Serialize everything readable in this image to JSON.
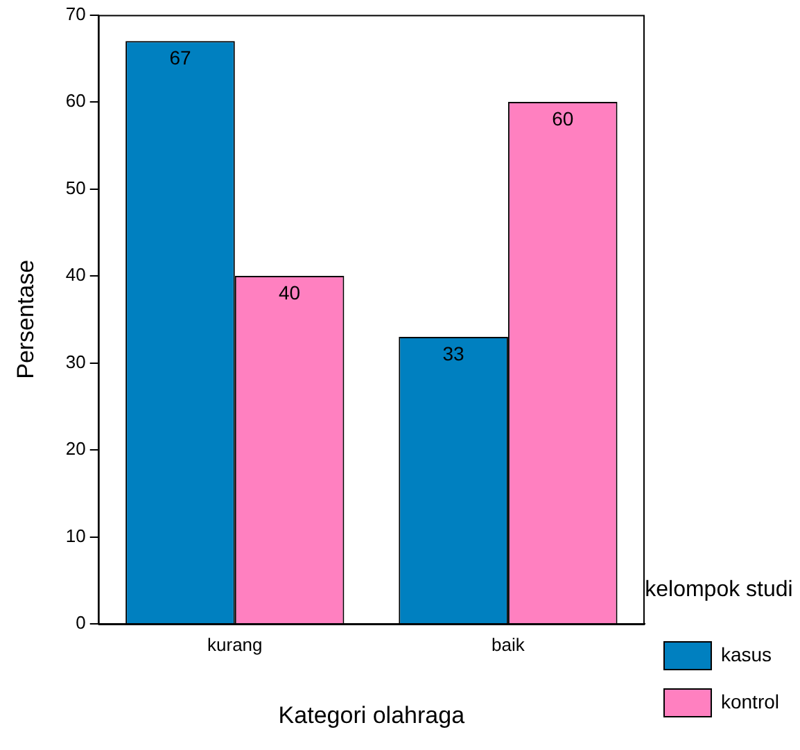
{
  "chart_data": {
    "type": "bar",
    "xlabel": "Kategori olahraga",
    "ylabel": "Persentase",
    "legend_title": "kelompok studi",
    "categories": [
      "kurang",
      "baik"
    ],
    "series": [
      {
        "name": "kasus",
        "color": "#0080c0",
        "values": [
          67,
          33
        ]
      },
      {
        "name": "kontrol",
        "color": "#ff80c0",
        "values": [
          40,
          60
        ]
      }
    ],
    "ylim": [
      0,
      70
    ],
    "yticks": [
      0,
      10,
      20,
      30,
      40,
      50,
      60,
      70
    ],
    "grid": false,
    "legend": "right",
    "data_labels": true
  }
}
